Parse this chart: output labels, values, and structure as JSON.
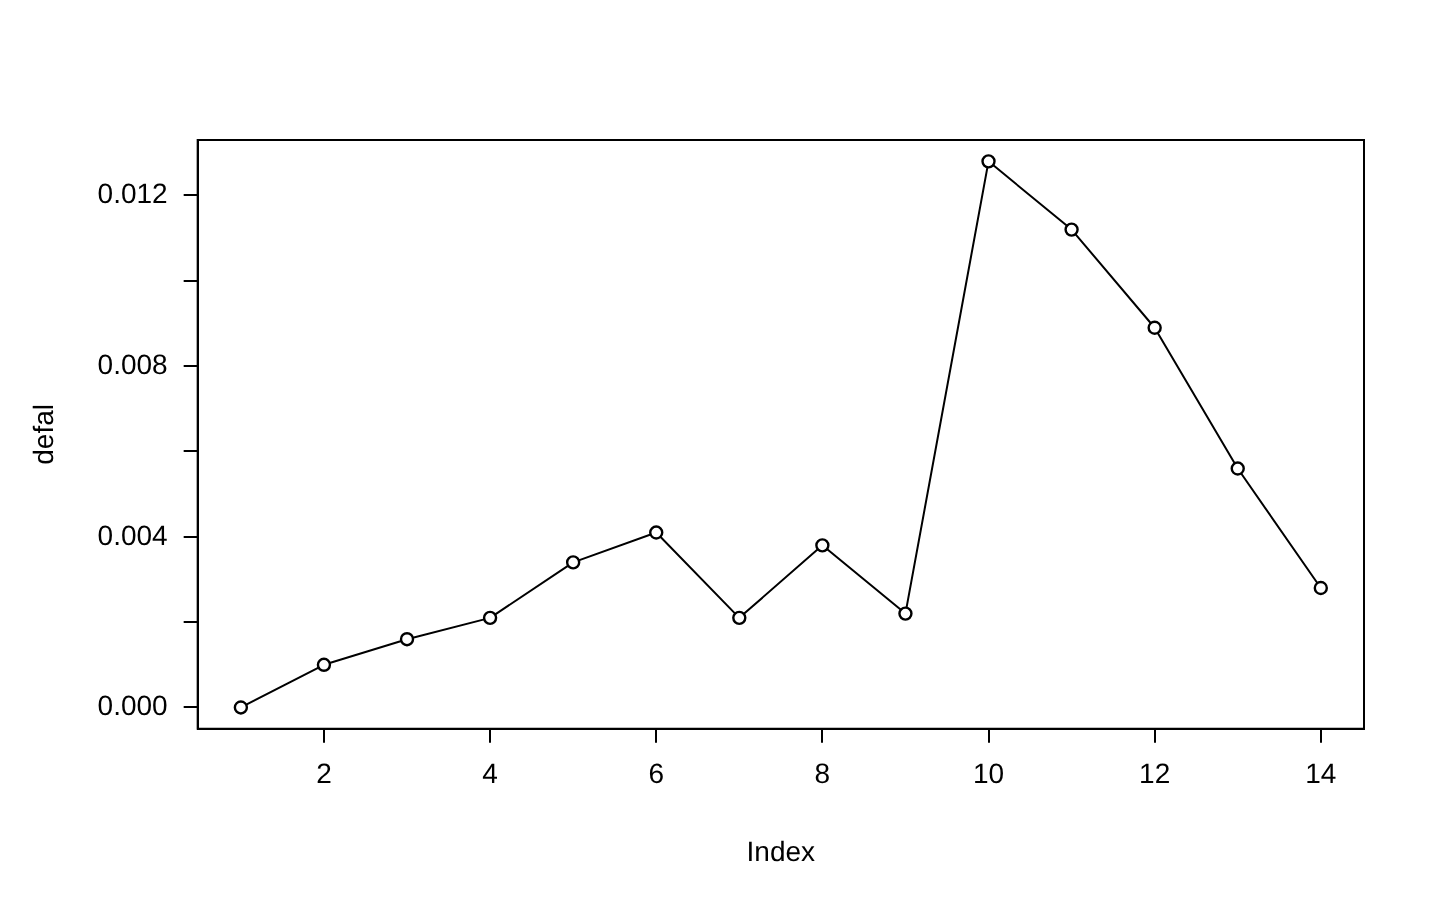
{
  "chart_data": {
    "type": "line",
    "xlabel": "Index",
    "ylabel": "defal",
    "x": [
      1,
      2,
      3,
      4,
      5,
      6,
      7,
      8,
      9,
      10,
      11,
      12,
      13,
      14
    ],
    "series": [
      {
        "color": "#000000",
        "values": [
          0,
          0.001,
          0.0016,
          0.0021,
          0.0034,
          0.0041,
          0.0021,
          0.0038,
          0.0022,
          0.0128,
          0.0112,
          0.0089,
          0.0056,
          0.0028
        ]
      }
    ],
    "xlim": [
      0.48,
      14.52
    ],
    "xticks": [
      2,
      4,
      6,
      8,
      10,
      12,
      14
    ],
    "ylim": [
      -0.0005,
      0.0133
    ],
    "yticks": [
      {
        "value": 0,
        "label": "0.000"
      },
      {
        "value": 0.002,
        "label": null
      },
      {
        "value": 0.004,
        "label": "0.004"
      },
      {
        "value": 0.006,
        "label": null
      },
      {
        "value": 0.008,
        "label": "0.008"
      },
      {
        "value": 0.01,
        "label": null
      },
      {
        "value": 0.012,
        "label": "0.012"
      }
    ],
    "grid": false,
    "legend": false,
    "marker": "circle",
    "line_style": "solid"
  }
}
